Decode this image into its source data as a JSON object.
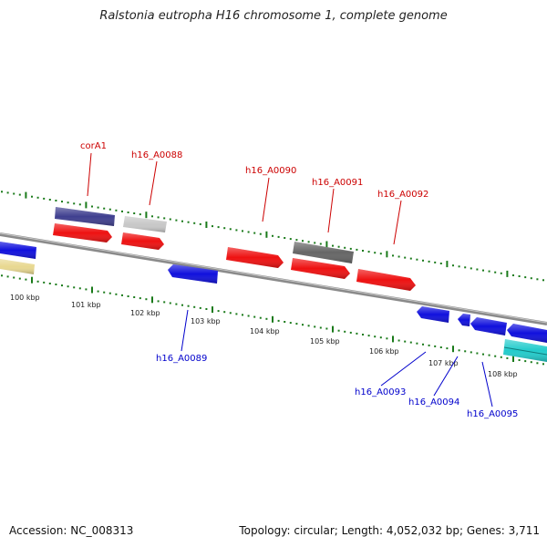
{
  "title": "Ralstonia eutropha H16 chromosome 1, complete genome",
  "footer": {
    "accession": "Accession: NC_008313",
    "info": "Topology: circular; Length: 4,052,032 bp; Genes: 3,711"
  },
  "colors": {
    "backbone": "#8a8a8a",
    "tick": "#1a7a1a",
    "forward_label": "#cc0000",
    "reverse_label": "#0000cc",
    "red": "#ee1111",
    "blue": "#1010dd",
    "navy": "#3f3f8f",
    "gray_light": "#c8c8c8",
    "gray_dark": "#666666",
    "yellow": "#e8d890",
    "cyan": "#22cccc"
  },
  "scale": {
    "tick_labels": [
      "100 kbp",
      "101 kbp",
      "102 kbp",
      "103 kbp",
      "104 kbp",
      "105 kbp",
      "106 kbp",
      "107 kbp",
      "108 kbp"
    ]
  },
  "genes_forward": [
    {
      "label": "corA1"
    },
    {
      "label": "h16_A0088"
    },
    {
      "label": "h16_A0090"
    },
    {
      "label": "h16_A0091"
    },
    {
      "label": "h16_A0092"
    }
  ],
  "genes_reverse": [
    {
      "label": "h16_A0089"
    },
    {
      "label": "h16_A0093"
    },
    {
      "label": "h16_A0094"
    },
    {
      "label": "h16_A0095"
    }
  ]
}
